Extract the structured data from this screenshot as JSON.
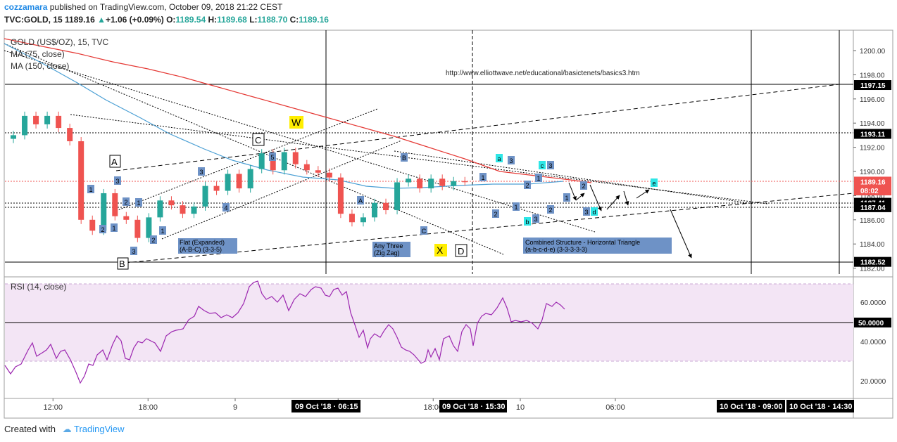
{
  "header": {
    "author": "cozzamara",
    "published": "published on TradingView.com, October 09, 2018 21:22 CEST",
    "symbol": "TVC:GOLD, 15",
    "last": "1189.16",
    "change_arrow": "▲",
    "change": "+1.06 (+0.09%)",
    "o_label": "O:",
    "o_value": "1189.54",
    "h_label": "H:",
    "h_value": "1189.68",
    "l_label": "L:",
    "l_value": "1188.70",
    "c_label": "C:",
    "c_value": "1189.16"
  },
  "footer": {
    "created_with": "Created with",
    "logo_text": "TradingView"
  },
  "colors": {
    "up": "#26a69a",
    "down": "#ef5350",
    "ma75": "#4a9fd4",
    "ma150": "#e53935",
    "rsi_line": "#9c27b0",
    "rsi_band": "#f3e5f5",
    "label_blue": "#6e92c6",
    "label_cyan": "#2ee6e6",
    "label_yellow": "#ffee00"
  },
  "chart_data": [
    {
      "type": "candlestick",
      "title": "GOLD (US$/OZ), 15, TVC",
      "ma_legend": [
        "MA (75, close)",
        "MA (150, close)"
      ],
      "y_ticks": [
        "1200.00",
        "1198.00",
        "1196.00",
        "1194.00",
        "1192.00",
        "1190.00",
        "1188.00",
        "1186.00",
        "1184.00",
        "1182.00"
      ],
      "ylim": [
        1181.6,
        1201.2
      ],
      "x_ticks": [
        "12:00",
        "18:00",
        "9",
        "12:00",
        "18:00",
        "10",
        "06:00"
      ],
      "x_tick_positions": [
        0.5,
        6.5,
        12,
        18.5,
        24.5,
        30,
        36
      ],
      "xlim": [
        -2,
        45
      ],
      "price_tags": [
        {
          "value": 1197.15,
          "label": "1197.15",
          "style": "dark"
        },
        {
          "value": 1193.11,
          "label": "1193.11",
          "style": "dark"
        },
        {
          "value": 1189.16,
          "label": "1189.16",
          "style": "red"
        },
        {
          "value": 1188.43,
          "label": "08:02",
          "style": "red"
        },
        {
          "value": 1187.41,
          "label": "1187.41",
          "style": "dark"
        },
        {
          "value": 1187.04,
          "label": "1187.04",
          "style": "dark"
        },
        {
          "value": 1182.52,
          "label": "1182.52",
          "style": "dark"
        }
      ],
      "time_tags": [
        "09 Oct '18 · 06:15",
        "09 Oct '18 · 15:30",
        "10 Oct '18 · 09:00",
        "10 Oct '18 · 14:30"
      ],
      "link_text": "http://www.elliottwave.net/educational/basictenets/basics3.htm",
      "annotations": {
        "flat": [
          "Flat (Expanded)",
          "(A-B-C) (3-3-5)"
        ],
        "zigzag": [
          "Any Three",
          "(Zig Zag)"
        ],
        "triangle": [
          "Combined Structure - Horizontal Triangle",
          "(a-b-c-d-e) (3-3-3-3-3)"
        ]
      },
      "wave_labels_boxed": [
        "A",
        "B",
        "C",
        "D"
      ],
      "wave_labels_yellow": [
        "W",
        "X"
      ],
      "wave_labels_small": [
        "1",
        "2",
        "3",
        "4",
        "5",
        "A",
        "B",
        "C",
        "a",
        "b",
        "c",
        "d",
        "e"
      ],
      "series": [
        {
          "name": "GOLD",
          "x_range": [
            -2,
            26.5
          ],
          "close_approx": [
            1193,
            1194.6,
            1193.9,
            1194.6,
            1193.6,
            1192.5,
            1186,
            1185.1,
            1188.2,
            1186.3,
            1186,
            1184.5,
            1186.2,
            1187.6,
            1187.2,
            1186.5,
            1187.1,
            1188.8,
            1188.4,
            1189.8,
            1188.6,
            1190.2,
            1191.5,
            1190.1,
            1191.6,
            1190.6,
            1190.1,
            1189.9,
            1189.5,
            1186.5,
            1185.8,
            1186.2,
            1187.4,
            1186.8,
            1189.1,
            1189.4,
            1188.6,
            1189.4,
            1188.8,
            1189.2,
            1189.16
          ]
        },
        {
          "name": "MA (75, close)",
          "values_approx": [
            1200.3,
            1197.5,
            1194.5,
            1192.8,
            1191.2,
            1190.1,
            1189.2,
            1188.8,
            1188.8,
            1188.9,
            1189.0,
            1189.2
          ]
        },
        {
          "name": "MA (150, close)",
          "values_approx": [
            1198.5,
            1197.3,
            1196.5,
            1195.8,
            1195.0,
            1194.2,
            1193.3,
            1192.5,
            1191.5,
            1190.5,
            1189.6
          ]
        }
      ]
    },
    {
      "type": "line",
      "title": "RSI (14, close)",
      "y_ticks": [
        "60.0000",
        "40.0000",
        "20.0000"
      ],
      "ylim": [
        12,
        72
      ],
      "band": [
        30,
        70
      ],
      "reference": {
        "value": 50,
        "label": "50.0000"
      },
      "series": [
        {
          "name": "RSI",
          "values_approx": [
            30,
            35,
            38,
            45,
            41,
            30,
            17,
            28,
            36,
            42,
            35,
            40,
            41,
            43,
            42,
            47,
            52,
            55,
            55,
            63,
            58,
            66,
            70,
            62,
            69,
            65,
            55,
            45,
            38,
            33,
            29,
            35,
            40,
            33,
            43,
            50,
            53,
            60,
            51,
            53,
            50,
            59,
            58,
            55
          ]
        }
      ]
    }
  ]
}
